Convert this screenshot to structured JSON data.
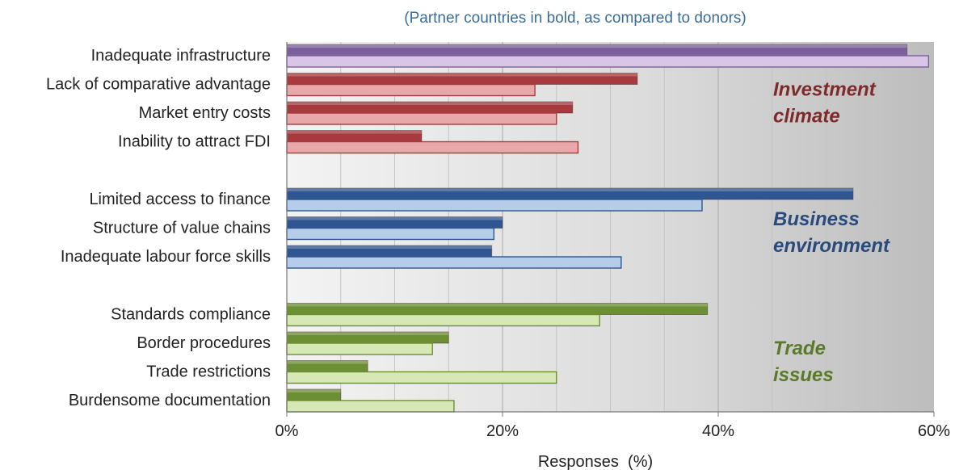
{
  "chart_data": {
    "type": "bar",
    "orientation": "horizontal",
    "subtitle": "(Partner countries in bold, as compared to donors)",
    "xlabel": "Responses  (%)",
    "ylabel": "",
    "xlim": [
      0,
      60
    ],
    "x_ticks": [
      {
        "value": 0,
        "label": "0%"
      },
      {
        "value": 20,
        "label": "20%"
      },
      {
        "value": 40,
        "label": "40%"
      },
      {
        "value": 60,
        "label": "60%"
      }
    ],
    "gridlines": "vertical, every 5%",
    "background": "grey gradient, light at left to darker at right",
    "groups": [
      {
        "label_lines": [
          "Investment",
          "climate"
        ],
        "color": "#7f2a2a",
        "bar_dark": "#a63a3e",
        "bar_light": "#e8a7a8",
        "categories": [
          {
            "label": "Inadequate infrastructure",
            "partner": 57.5,
            "donor": 59.5,
            "dark": "#7c609c",
            "light": "#d9c6e6"
          },
          {
            "label": "Lack of comparative advantage",
            "partner": 32.5,
            "donor": 23
          },
          {
            "label": "Market entry costs",
            "partner": 26.5,
            "donor": 25
          },
          {
            "label": "Inability to attract FDI",
            "partner": 12.5,
            "donor": 27
          }
        ]
      },
      {
        "label_lines": [
          "Business",
          "environment"
        ],
        "color": "#2a4a7b",
        "bar_dark": "#2f5690",
        "bar_light": "#b6cde9",
        "categories": [
          {
            "label": "Limited access to finance",
            "partner": 52.5,
            "donor": 38.5
          },
          {
            "label": "Structure of value chains",
            "partner": 20,
            "donor": 19.2
          },
          {
            "label": "Inadequate labour force skills",
            "partner": 19,
            "donor": 31
          }
        ]
      },
      {
        "label_lines": [
          "Trade",
          "issues"
        ],
        "color": "#5a7a2a",
        "bar_dark": "#6d8f34",
        "bar_light": "#d6e8b6",
        "categories": [
          {
            "label": "Standards compliance",
            "partner": 39,
            "donor": 29
          },
          {
            "label": "Border procedures",
            "partner": 15,
            "donor": 13.5
          },
          {
            "label": "Trade restrictions",
            "partner": 7.5,
            "donor": 25
          },
          {
            "label": "Burdensome documentation",
            "partner": 5,
            "donor": 15.5
          }
        ]
      }
    ]
  }
}
